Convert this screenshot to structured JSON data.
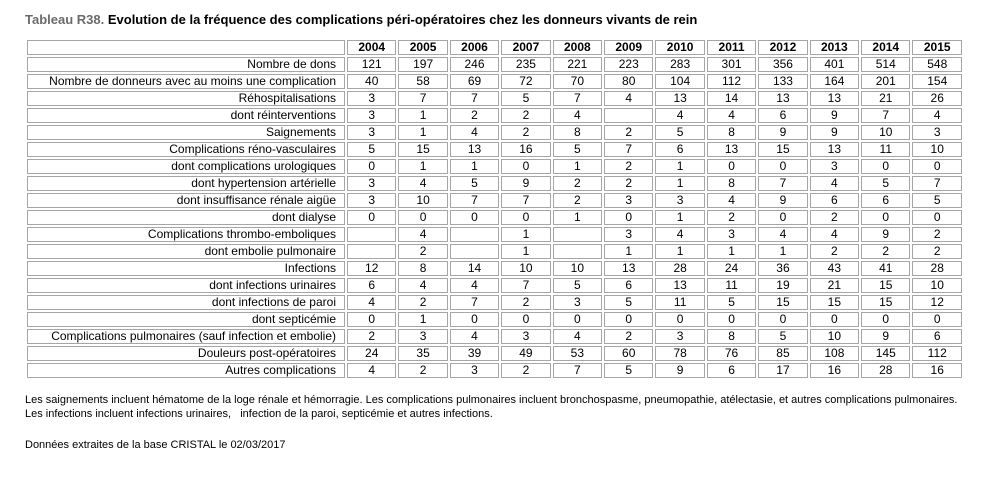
{
  "title": {
    "number": "Tableau R38.",
    "text": " Evolution de la fréquence des complications péri-opératoires chez les donneurs vivants de rein"
  },
  "table": {
    "corner_label": "",
    "columns": [
      "2004",
      "2005",
      "2006",
      "2007",
      "2008",
      "2009",
      "2010",
      "2011",
      "2012",
      "2013",
      "2014",
      "2015"
    ],
    "rows": [
      {
        "label": "Nombre de dons",
        "values": [
          "121",
          "197",
          "246",
          "235",
          "221",
          "223",
          "283",
          "301",
          "356",
          "401",
          "514",
          "548"
        ]
      },
      {
        "label": "Nombre de donneurs avec au moins une complication",
        "values": [
          "40",
          "58",
          "69",
          "72",
          "70",
          "80",
          "104",
          "112",
          "133",
          "164",
          "201",
          "154"
        ]
      },
      {
        "label": "Réhospitalisations",
        "values": [
          "3",
          "7",
          "7",
          "5",
          "7",
          "4",
          "13",
          "14",
          "13",
          "13",
          "21",
          "26"
        ]
      },
      {
        "label": "dont réinterventions",
        "values": [
          "3",
          "1",
          "2",
          "2",
          "4",
          "",
          "4",
          "4",
          "6",
          "9",
          "7",
          "4"
        ]
      },
      {
        "label": "Saignements",
        "values": [
          "3",
          "1",
          "4",
          "2",
          "8",
          "2",
          "5",
          "8",
          "9",
          "9",
          "10",
          "3"
        ]
      },
      {
        "label": "Complications réno-vasculaires",
        "values": [
          "5",
          "15",
          "13",
          "16",
          "5",
          "7",
          "6",
          "13",
          "15",
          "13",
          "11",
          "10"
        ]
      },
      {
        "label": "dont complications urologiques",
        "values": [
          "0",
          "1",
          "1",
          "0",
          "1",
          "2",
          "1",
          "0",
          "0",
          "3",
          "0",
          "0"
        ]
      },
      {
        "label": "dont hypertension artérielle",
        "values": [
          "3",
          "4",
          "5",
          "9",
          "2",
          "2",
          "1",
          "8",
          "7",
          "4",
          "5",
          "7"
        ]
      },
      {
        "label": "dont insuffisance rénale aigüe",
        "values": [
          "3",
          "10",
          "7",
          "7",
          "2",
          "3",
          "3",
          "4",
          "9",
          "6",
          "6",
          "5"
        ]
      },
      {
        "label": "dont dialyse",
        "values": [
          "0",
          "0",
          "0",
          "0",
          "1",
          "0",
          "1",
          "2",
          "0",
          "2",
          "0",
          "0"
        ]
      },
      {
        "label": "Complications thrombo-emboliques",
        "values": [
          "",
          "4",
          "",
          "1",
          "",
          "3",
          "4",
          "3",
          "4",
          "4",
          "9",
          "2"
        ]
      },
      {
        "label": "dont embolie pulmonaire",
        "values": [
          "",
          "2",
          "",
          "1",
          "",
          "1",
          "1",
          "1",
          "1",
          "2",
          "2",
          "2"
        ]
      },
      {
        "label": "Infections",
        "values": [
          "12",
          "8",
          "14",
          "10",
          "10",
          "13",
          "28",
          "24",
          "36",
          "43",
          "41",
          "28"
        ]
      },
      {
        "label": "dont infections urinaires",
        "values": [
          "6",
          "4",
          "4",
          "7",
          "5",
          "6",
          "13",
          "11",
          "19",
          "21",
          "15",
          "10"
        ]
      },
      {
        "label": "dont infections de paroi",
        "values": [
          "4",
          "2",
          "7",
          "2",
          "3",
          "5",
          "11",
          "5",
          "15",
          "15",
          "15",
          "12"
        ]
      },
      {
        "label": "dont septicémie",
        "values": [
          "0",
          "1",
          "0",
          "0",
          "0",
          "0",
          "0",
          "0",
          "0",
          "0",
          "0",
          "0"
        ]
      },
      {
        "label": "Complications pulmonaires (sauf infection et embolie)",
        "values": [
          "2",
          "3",
          "4",
          "3",
          "4",
          "2",
          "3",
          "8",
          "5",
          "10",
          "9",
          "6"
        ]
      },
      {
        "label": "Douleurs post-opératoires",
        "values": [
          "24",
          "35",
          "39",
          "49",
          "53",
          "60",
          "78",
          "76",
          "85",
          "108",
          "145",
          "112"
        ]
      },
      {
        "label": "Autres complications",
        "values": [
          "4",
          "2",
          "3",
          "2",
          "7",
          "5",
          "9",
          "6",
          "17",
          "16",
          "28",
          "16"
        ]
      }
    ]
  },
  "footnotes": {
    "methodology": "Les saignements incluent hématome de la loge rénale et hémorragie. Les complications pulmonaires incluent bronchospasme, pneumopathie, atélectasie, et autres complications pulmonaires. Les infections incluent infections urinaires,   infection de la paroi, septicémie et autres infections.",
    "source": "Données extraites de la base CRISTAL le 02/03/2017"
  }
}
